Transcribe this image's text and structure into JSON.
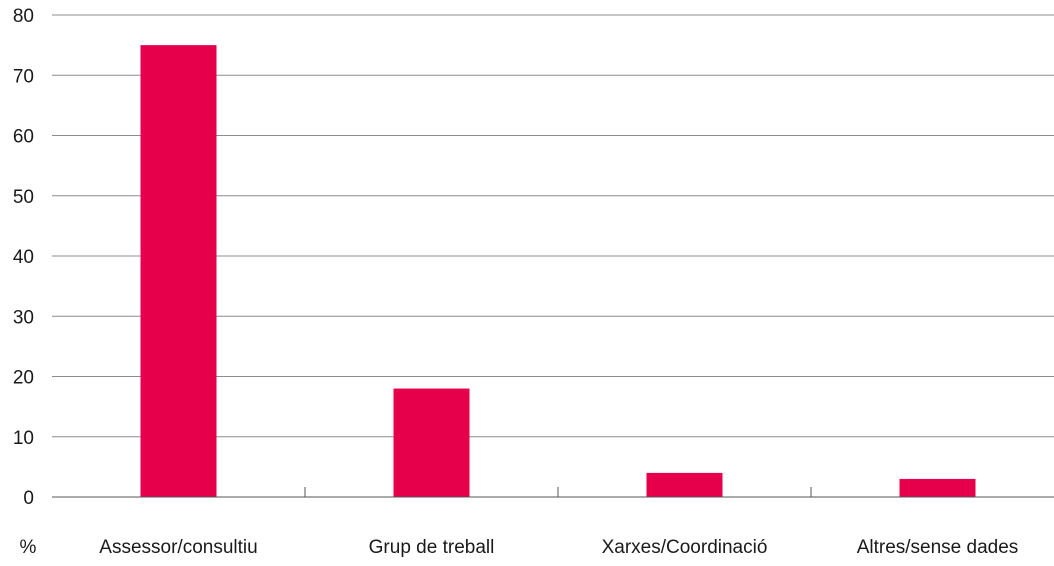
{
  "chart_data": {
    "type": "bar",
    "categories": [
      "Assessor/consultiu",
      "Grup de treball",
      "Xarxes/Coordinació",
      "Altres/sense dades"
    ],
    "values": [
      75,
      18,
      4,
      3
    ],
    "ylim": [
      0,
      80
    ],
    "yticks": [
      "0",
      "10",
      "20",
      "30",
      "40",
      "50",
      "60",
      "70",
      "80"
    ],
    "ylabel": "%",
    "xlabel": "",
    "title": "",
    "grid": true,
    "colors": {
      "bar": "#e6004c",
      "grid": "#8c8c8c",
      "axis": "#555555"
    }
  }
}
